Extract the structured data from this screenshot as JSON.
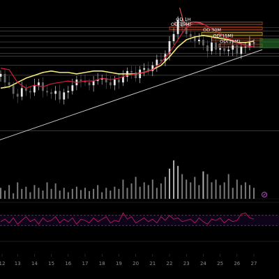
{
  "chart_data": {
    "type": "candlestick",
    "title": "",
    "xlabel": "",
    "ylabel": "",
    "background_color": "#000000",
    "x_axis": {
      "unit": "day of month",
      "ticks": [
        "12",
        "13",
        "14",
        "15",
        "16",
        "17",
        "18",
        "19",
        "20",
        "21",
        "22",
        "23",
        "24",
        "25",
        "26",
        "27"
      ]
    },
    "y_range": [
      0,
      100
    ],
    "zones": [
      {
        "label": "OD 1H",
        "from_day": 22.3,
        "to_day": 27.5,
        "low": 86.5,
        "high": 88.5,
        "color": "#c44b2a"
      },
      {
        "label": "OD(15M)",
        "from_day": 22.0,
        "to_day": 27.5,
        "low": 83.0,
        "high": 85.0,
        "color": "#c44b2a"
      },
      {
        "label": "OD 30M",
        "from_day": 23.9,
        "to_day": 27.5,
        "low": 79.0,
        "high": 81.2,
        "color": "#d4b03a"
      },
      {
        "label": "OD(15M)",
        "from_day": 24.5,
        "to_day": 27.5,
        "low": 75.5,
        "high": 77.0,
        "color": "#c44b2a"
      },
      {
        "label": "OD(15M)",
        "from_day": 24.9,
        "to_day": 27.5,
        "low": 71.0,
        "high": 73.0,
        "color": "#c44b2a"
      }
    ],
    "horizontal_levels": [
      84.5,
      82.0,
      78.5,
      74.5,
      70.5,
      66.5,
      64.5,
      58.0,
      51.0,
      12.0
    ],
    "trendline": {
      "from": [
        11.8,
        5.0
      ],
      "to": [
        27.5,
        69.0
      ],
      "color": "#c8c8c8"
    },
    "series": [
      {
        "type": "candles",
        "up_color": "#e8e8e8",
        "down_color": "#666666",
        "x": [
          12.0,
          12.25,
          12.5,
          12.75,
          13.0,
          13.25,
          13.5,
          13.75,
          14.0,
          14.25,
          14.5,
          14.75,
          15.0,
          15.25,
          15.5,
          15.75,
          16.0,
          16.25,
          16.5,
          16.75,
          17.0,
          17.25,
          17.5,
          17.75,
          18.0,
          18.25,
          18.5,
          18.75,
          19.0,
          19.25,
          19.5,
          19.75,
          20.0,
          20.25,
          20.5,
          20.75,
          21.0,
          21.25,
          21.5,
          21.75,
          22.0,
          22.25,
          22.5,
          22.75,
          23.0,
          23.25,
          23.5,
          23.75,
          24.0,
          24.25,
          24.5,
          24.75,
          25.0,
          25.25,
          25.5,
          25.75,
          26.0,
          26.25,
          26.5,
          26.75,
          27.0
        ],
        "close": [
          52,
          46,
          44,
          38,
          36,
          42,
          40,
          39,
          44,
          46,
          40,
          39,
          38,
          40,
          34,
          39,
          40,
          44,
          48,
          47,
          46,
          44,
          47,
          48,
          49,
          46,
          44,
          48,
          46,
          50,
          54,
          53,
          49,
          55,
          56,
          54,
          58,
          62,
          61,
          66,
          75,
          80,
          90,
          85,
          80,
          78,
          75,
          76,
          72,
          68,
          74,
          69,
          70,
          68,
          69,
          72,
          66,
          71,
          71,
          74,
          74
        ]
      },
      {
        "type": "line",
        "name": "",
        "color": "#f5ec7a",
        "x": [
          12.0,
          12.5,
          13.0,
          13.5,
          14.0,
          14.5,
          15.0,
          15.5,
          16.0,
          16.5,
          17.0,
          17.5,
          18.0,
          18.5,
          19.0,
          19.5,
          20.0,
          20.5,
          21.0,
          21.5,
          22.0,
          22.5,
          23.0,
          23.5,
          24.0,
          24.5,
          25.0,
          25.5,
          26.0,
          26.5,
          27.0
        ],
        "y": [
          42,
          43,
          46,
          49,
          51,
          53,
          54,
          53,
          53,
          52,
          53,
          54,
          54,
          53,
          52,
          52,
          52,
          53,
          55,
          58,
          64,
          71,
          76,
          78,
          79,
          78,
          77,
          76,
          74,
          74,
          75
        ]
      },
      {
        "type": "line",
        "name": "",
        "color": "#d81b3c",
        "x": [
          12.0,
          12.5,
          13.0,
          13.5,
          14.0,
          14.5,
          15.0,
          15.5,
          16.0,
          16.5,
          17.0,
          17.5,
          18.0,
          18.5,
          19.0,
          19.5,
          20.0,
          20.5,
          21.0,
          21.5,
          22.0,
          22.5,
          23.0,
          23.5,
          24.0,
          24.5,
          25.0,
          25.5,
          26.0,
          26.5,
          27.0
        ],
        "y": [
          56,
          55,
          46,
          42,
          44,
          43,
          45,
          46,
          47,
          46,
          47,
          47,
          49,
          48,
          49,
          51,
          52,
          53,
          55,
          60,
          67,
          76,
          85,
          88,
          87,
          84,
          80,
          77,
          74,
          72,
          71
        ]
      },
      {
        "type": "line",
        "name": "",
        "color": "#e0504a",
        "x": [
          22.6,
          22.8,
          23.0,
          23.2,
          23.4,
          23.6,
          23.8,
          24.0
        ],
        "y": [
          98.5,
          90,
          86,
          87.5,
          88.5,
          88.5,
          88,
          87
        ]
      },
      {
        "type": "volume",
        "color": "#7a7a7a",
        "highlight_color": "#b0b0b0",
        "x": [
          12.0,
          12.25,
          12.5,
          12.75,
          13.0,
          13.25,
          13.5,
          13.75,
          14.0,
          14.25,
          14.5,
          14.75,
          15.0,
          15.25,
          15.5,
          15.75,
          16.0,
          16.25,
          16.5,
          16.75,
          17.0,
          17.25,
          17.5,
          17.75,
          18.0,
          18.25,
          18.5,
          18.75,
          19.0,
          19.25,
          19.5,
          19.75,
          20.0,
          20.25,
          20.5,
          20.75,
          21.0,
          21.25,
          21.5,
          21.75,
          22.0,
          22.25,
          22.5,
          22.75,
          23.0,
          23.25,
          23.5,
          23.75,
          24.0,
          24.25,
          24.5,
          24.75,
          25.0,
          25.25,
          25.5,
          25.75,
          26.0,
          26.25,
          26.5,
          26.75,
          27.0
        ],
        "values": [
          20,
          15,
          25,
          10,
          30,
          18,
          22,
          12,
          25,
          20,
          15,
          30,
          18,
          28,
          15,
          20,
          12,
          18,
          22,
          16,
          20,
          14,
          18,
          25,
          12,
          20,
          15,
          22,
          18,
          35,
          20,
          28,
          40,
          22,
          30,
          25,
          35,
          20,
          28,
          40,
          55,
          70,
          60,
          45,
          35,
          30,
          40,
          25,
          50,
          45,
          30,
          35,
          25,
          30,
          45,
          20,
          35,
          25,
          30,
          25,
          20
        ]
      },
      {
        "type": "oscillator",
        "color": "#c2185b",
        "band": [
          30,
          70
        ],
        "x": [
          12.0,
          12.25,
          12.5,
          12.75,
          13.0,
          13.25,
          13.5,
          13.75,
          14.0,
          14.25,
          14.5,
          14.75,
          15.0,
          15.25,
          15.5,
          15.75,
          16.0,
          16.25,
          16.5,
          16.75,
          17.0,
          17.25,
          17.5,
          17.75,
          18.0,
          18.25,
          18.5,
          18.75,
          19.0,
          19.25,
          19.5,
          19.75,
          20.0,
          20.25,
          20.5,
          20.75,
          21.0,
          21.25,
          21.5,
          21.75,
          22.0,
          22.25,
          22.5,
          22.75,
          23.0,
          23.25,
          23.5,
          23.75,
          24.0,
          24.25,
          24.5,
          24.75,
          25.0,
          25.25,
          25.5,
          25.75,
          26.0,
          26.25,
          26.5,
          26.75,
          27.0
        ],
        "values": [
          45,
          55,
          40,
          60,
          35,
          50,
          65,
          45,
          55,
          35,
          60,
          45,
          50,
          65,
          40,
          55,
          45,
          60,
          35,
          55,
          50,
          40,
          60,
          45,
          55,
          65,
          40,
          50,
          45,
          80,
          55,
          65,
          40,
          50,
          60,
          45,
          55,
          40,
          65,
          50,
          70,
          55,
          60,
          45,
          50,
          55,
          40,
          60,
          45,
          35,
          55,
          50,
          60,
          40,
          55,
          45,
          50,
          75,
          80,
          60,
          55
        ]
      }
    ]
  }
}
